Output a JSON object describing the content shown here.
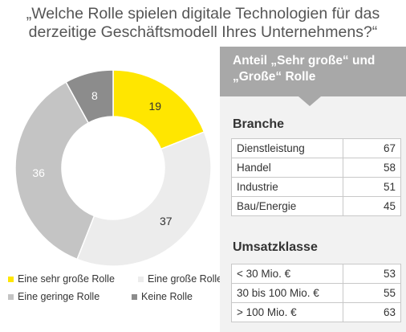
{
  "title": {
    "line1": "„Welche Rolle spielen digitale Technologien für das",
    "line2": "derzeitige Geschäftsmodell Ihres Unternehmens?“"
  },
  "colors": {
    "sehr_gross": "#ffe600",
    "gross": "#ececec",
    "gering": "#c4c4c4",
    "keine": "#8c8c8c",
    "panel_header": "#a8a8a8",
    "panel_bg": "#f2f2f2"
  },
  "chart_data": {
    "type": "pie",
    "variant": "donut",
    "categories": [
      "Eine sehr große Rolle",
      "Eine große Rolle",
      "Eine geringe Rolle",
      "Keine Rolle"
    ],
    "values": [
      19,
      37,
      36,
      8
    ],
    "colors": [
      "#ffe600",
      "#ececec",
      "#c4c4c4",
      "#8c8c8c"
    ],
    "data_labels": [
      "19",
      "37",
      "36",
      "8"
    ],
    "legend_position": "bottom"
  },
  "panel": {
    "header_line1": "Anteil „Sehr große“ und",
    "header_line2": "„Große“ Rolle",
    "branche": {
      "title": "Branche",
      "rows": [
        {
          "label": "Dienstleistung",
          "value": "67"
        },
        {
          "label": "Handel",
          "value": "58"
        },
        {
          "label": "Industrie",
          "value": "51"
        },
        {
          "label": "Bau/Energie",
          "value": "45"
        }
      ]
    },
    "umsatz": {
      "title": "Umsatzklasse",
      "rows": [
        {
          "label": "< 30 Mio. €",
          "value": "53"
        },
        {
          "label": "30 bis 100 Mio. €",
          "value": "55"
        },
        {
          "label": "> 100 Mio. €",
          "value": "63"
        }
      ]
    }
  }
}
